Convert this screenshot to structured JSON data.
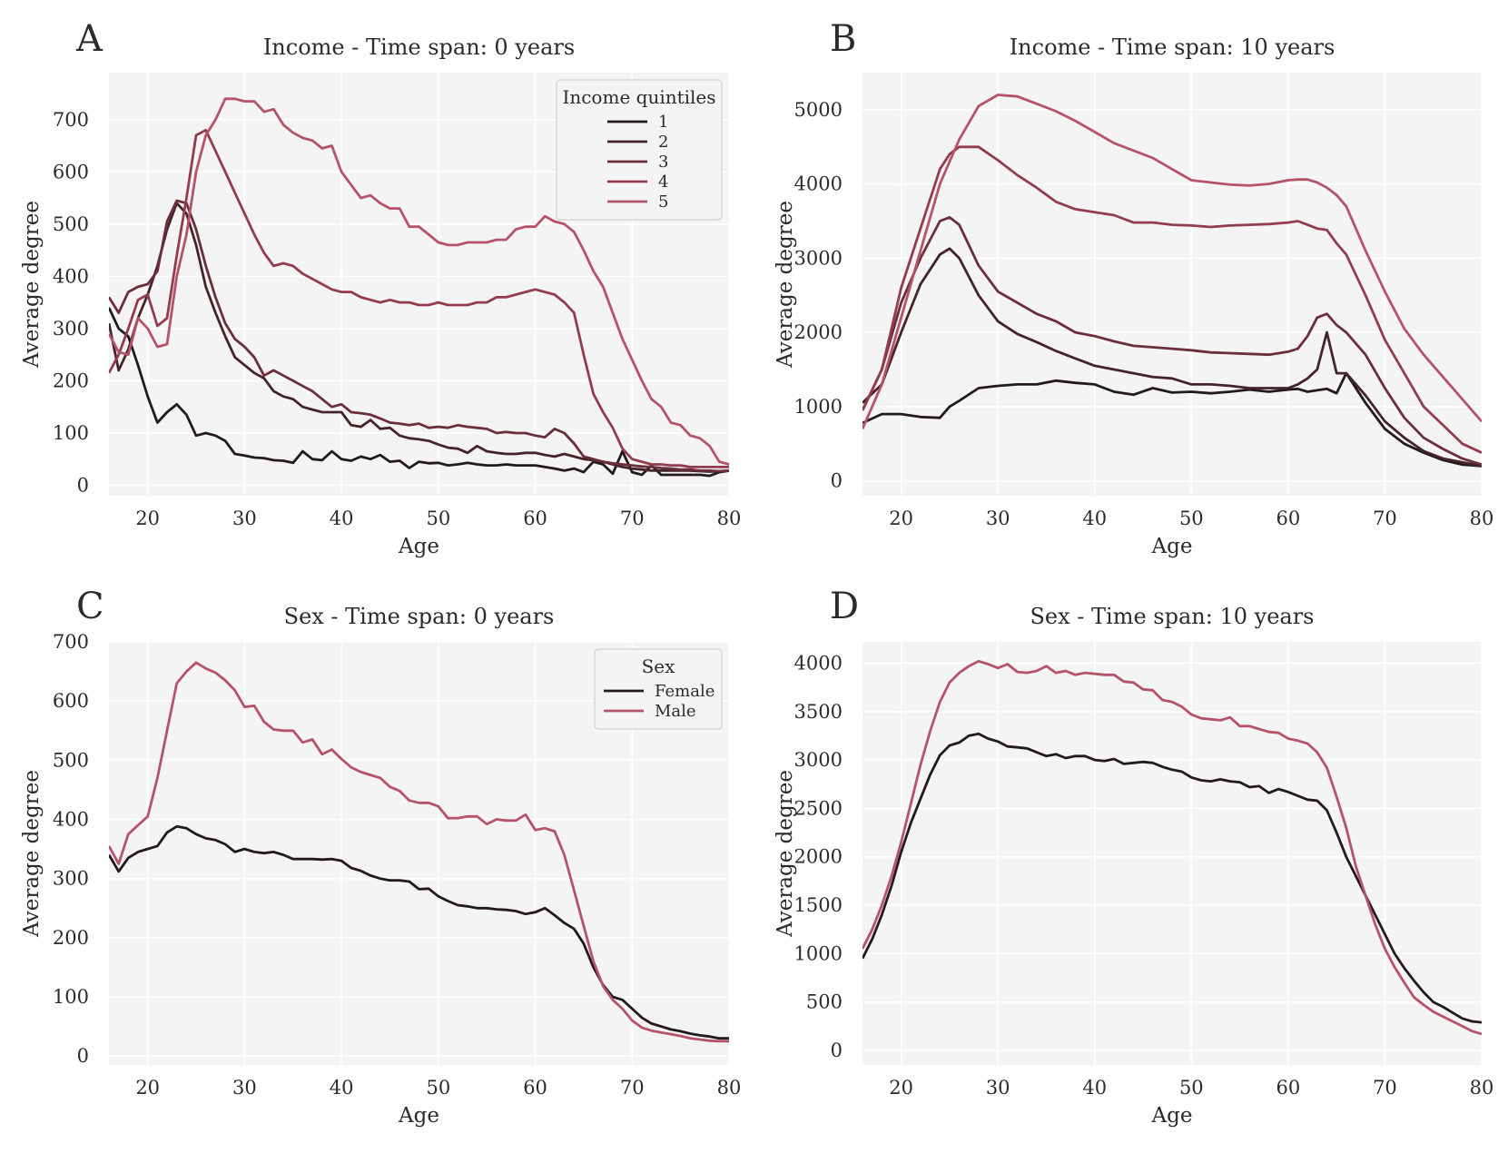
{
  "colors": {
    "plot_bg": "#f4f4f4",
    "grid": "#ffffff",
    "series": [
      "#231a1f",
      "#452429",
      "#6b2f3b",
      "#923c4e",
      "#b5536a"
    ],
    "female": "#231a1f",
    "male": "#b5536a"
  },
  "chart_data": [
    {
      "type": "line",
      "panel_label": "A",
      "title": "Income - Time span: 0 years",
      "xlabel": "Age",
      "ylabel": "Average degree",
      "xlim": [
        16,
        80
      ],
      "ylim": [
        -20,
        790
      ],
      "xticks": [
        20,
        30,
        40,
        50,
        60,
        70,
        80
      ],
      "yticks": [
        0,
        100,
        200,
        300,
        400,
        500,
        600,
        700
      ],
      "legend": {
        "title": "Income quintiles",
        "position": "top-right"
      },
      "x": [
        16,
        17,
        18,
        19,
        20,
        21,
        22,
        23,
        24,
        25,
        26,
        27,
        28,
        29,
        30,
        31,
        32,
        33,
        34,
        35,
        36,
        37,
        38,
        39,
        40,
        41,
        42,
        43,
        44,
        45,
        46,
        47,
        48,
        49,
        50,
        51,
        52,
        53,
        54,
        55,
        56,
        57,
        58,
        59,
        60,
        61,
        62,
        63,
        64,
        65,
        66,
        67,
        68,
        69,
        70,
        71,
        72,
        73,
        74,
        75,
        76,
        77,
        78,
        79,
        80
      ],
      "series": [
        {
          "name": "1",
          "values": [
            340,
            300,
            285,
            230,
            170,
            120,
            140,
            155,
            135,
            95,
            100,
            95,
            85,
            60,
            57,
            53,
            52,
            48,
            47,
            43,
            65,
            50,
            48,
            65,
            50,
            47,
            55,
            50,
            58,
            45,
            47,
            33,
            45,
            42,
            43,
            38,
            40,
            43,
            40,
            38,
            38,
            40,
            38,
            38,
            38,
            35,
            32,
            28,
            32,
            25,
            45,
            40,
            22,
            65,
            25,
            20,
            38,
            20,
            20,
            20,
            20,
            20,
            18,
            25,
            28
          ]
        },
        {
          "name": "2",
          "values": [
            310,
            220,
            260,
            320,
            365,
            420,
            490,
            540,
            520,
            460,
            380,
            330,
            285,
            245,
            230,
            215,
            205,
            180,
            170,
            165,
            150,
            145,
            140,
            140,
            140,
            115,
            112,
            125,
            108,
            110,
            95,
            90,
            88,
            85,
            78,
            72,
            70,
            62,
            75,
            65,
            62,
            60,
            60,
            62,
            62,
            58,
            55,
            60,
            55,
            50,
            48,
            45,
            40,
            35,
            32,
            30,
            28,
            28,
            28,
            28,
            28,
            27,
            26,
            27,
            28
          ]
        },
        {
          "name": "3",
          "values": [
            360,
            330,
            370,
            380,
            385,
            410,
            505,
            545,
            540,
            490,
            420,
            360,
            310,
            280,
            265,
            245,
            210,
            220,
            210,
            200,
            190,
            180,
            165,
            150,
            155,
            140,
            138,
            135,
            128,
            120,
            118,
            115,
            118,
            110,
            112,
            110,
            115,
            112,
            110,
            108,
            100,
            102,
            100,
            100,
            95,
            92,
            108,
            100,
            80,
            55,
            50,
            45,
            42,
            40,
            38,
            36,
            35,
            33,
            32,
            30,
            30,
            28,
            28,
            27,
            28
          ]
        },
        {
          "name": "4",
          "values": [
            215,
            250,
            300,
            355,
            365,
            305,
            320,
            440,
            550,
            670,
            680,
            640,
            600,
            560,
            520,
            480,
            445,
            420,
            425,
            420,
            405,
            395,
            385,
            375,
            370,
            370,
            360,
            355,
            350,
            355,
            350,
            350,
            345,
            345,
            350,
            345,
            345,
            345,
            350,
            350,
            360,
            360,
            365,
            370,
            375,
            370,
            365,
            350,
            330,
            250,
            175,
            140,
            110,
            70,
            50,
            45,
            40,
            40,
            38,
            38,
            35,
            35,
            35,
            35,
            35
          ]
        },
        {
          "name": "5",
          "values": [
            290,
            255,
            250,
            320,
            300,
            265,
            270,
            400,
            480,
            600,
            670,
            700,
            740,
            740,
            735,
            735,
            715,
            720,
            690,
            675,
            665,
            660,
            645,
            650,
            600,
            575,
            550,
            555,
            540,
            530,
            530,
            495,
            495,
            480,
            465,
            460,
            460,
            465,
            465,
            465,
            470,
            470,
            490,
            495,
            495,
            515,
            505,
            500,
            485,
            450,
            410,
            380,
            330,
            280,
            240,
            200,
            165,
            150,
            120,
            115,
            95,
            90,
            75,
            45,
            40
          ]
        }
      ]
    },
    {
      "type": "line",
      "panel_label": "B",
      "title": "Income - Time span: 10 years",
      "xlabel": "Age",
      "ylabel": "Average degree",
      "xlim": [
        16,
        80
      ],
      "ylim": [
        -200,
        5500
      ],
      "xticks": [
        20,
        30,
        40,
        50,
        60,
        70,
        80
      ],
      "yticks": [
        0,
        1000,
        2000,
        3000,
        4000,
        5000
      ],
      "x": [
        16,
        18,
        20,
        22,
        24,
        25,
        26,
        28,
        30,
        32,
        34,
        36,
        38,
        40,
        42,
        44,
        46,
        48,
        50,
        52,
        54,
        56,
        58,
        60,
        61,
        62,
        63,
        64,
        65,
        66,
        68,
        70,
        72,
        74,
        76,
        78,
        80
      ],
      "series": [
        {
          "name": "1",
          "values": [
            780,
            900,
            900,
            860,
            850,
            1000,
            1080,
            1250,
            1280,
            1300,
            1300,
            1350,
            1320,
            1300,
            1200,
            1160,
            1250,
            1190,
            1200,
            1180,
            1200,
            1230,
            1200,
            1230,
            1240,
            1200,
            1220,
            1240,
            1180,
            1450,
            1050,
            700,
            500,
            380,
            280,
            220,
            200
          ]
        },
        {
          "name": "2",
          "values": [
            1050,
            1300,
            2000,
            2650,
            3050,
            3130,
            3000,
            2500,
            2150,
            1980,
            1870,
            1750,
            1650,
            1550,
            1500,
            1450,
            1400,
            1380,
            1300,
            1300,
            1280,
            1250,
            1250,
            1250,
            1300,
            1380,
            1500,
            2000,
            1450,
            1450,
            1150,
            800,
            580,
            400,
            300,
            250,
            200
          ]
        },
        {
          "name": "3",
          "values": [
            950,
            1500,
            2400,
            3000,
            3500,
            3550,
            3450,
            2900,
            2550,
            2400,
            2250,
            2150,
            2000,
            1950,
            1880,
            1820,
            1800,
            1780,
            1760,
            1730,
            1720,
            1710,
            1700,
            1740,
            1780,
            1950,
            2200,
            2250,
            2100,
            2000,
            1700,
            1250,
            850,
            580,
            430,
            300,
            220
          ]
        },
        {
          "name": "4",
          "values": [
            950,
            1500,
            2600,
            3400,
            4200,
            4400,
            4500,
            4500,
            4320,
            4120,
            3950,
            3760,
            3660,
            3620,
            3580,
            3480,
            3480,
            3450,
            3440,
            3420,
            3440,
            3450,
            3460,
            3480,
            3500,
            3450,
            3400,
            3380,
            3200,
            3050,
            2500,
            1900,
            1450,
            1000,
            750,
            500,
            380
          ]
        },
        {
          "name": "5",
          "values": [
            700,
            1300,
            2200,
            3100,
            4000,
            4300,
            4600,
            5050,
            5200,
            5180,
            5080,
            4980,
            4850,
            4700,
            4550,
            4450,
            4350,
            4200,
            4050,
            4020,
            3990,
            3980,
            4000,
            4050,
            4060,
            4060,
            4020,
            3950,
            3850,
            3700,
            3100,
            2550,
            2050,
            1700,
            1400,
            1100,
            800
          ]
        }
      ]
    },
    {
      "type": "line",
      "panel_label": "C",
      "title": "Sex - Time span: 0 years",
      "xlabel": "Age",
      "ylabel": "Average degree",
      "xlim": [
        16,
        80
      ],
      "ylim": [
        -15,
        700
      ],
      "xticks": [
        20,
        30,
        40,
        50,
        60,
        70,
        80
      ],
      "yticks": [
        0,
        100,
        200,
        300,
        400,
        500,
        600,
        700
      ],
      "legend": {
        "title": "Sex",
        "position": "top-right"
      },
      "x": [
        16,
        17,
        18,
        19,
        20,
        21,
        22,
        23,
        24,
        25,
        26,
        27,
        28,
        29,
        30,
        31,
        32,
        33,
        34,
        35,
        36,
        37,
        38,
        39,
        40,
        41,
        42,
        43,
        44,
        45,
        46,
        47,
        48,
        49,
        50,
        51,
        52,
        53,
        54,
        55,
        56,
        57,
        58,
        59,
        60,
        61,
        62,
        63,
        64,
        65,
        66,
        67,
        68,
        69,
        70,
        71,
        72,
        73,
        74,
        75,
        76,
        77,
        78,
        79,
        80
      ],
      "series": [
        {
          "name": "Female",
          "values": [
            340,
            312,
            335,
            345,
            350,
            355,
            378,
            388,
            385,
            375,
            368,
            365,
            358,
            345,
            350,
            345,
            343,
            345,
            340,
            333,
            333,
            333,
            332,
            333,
            330,
            318,
            313,
            305,
            300,
            297,
            297,
            295,
            282,
            283,
            270,
            262,
            255,
            253,
            250,
            250,
            248,
            247,
            245,
            240,
            243,
            250,
            238,
            225,
            215,
            190,
            150,
            120,
            100,
            95,
            80,
            65,
            55,
            50,
            45,
            42,
            38,
            35,
            33,
            30,
            30
          ]
        },
        {
          "name": "Male",
          "values": [
            355,
            325,
            375,
            390,
            405,
            470,
            550,
            630,
            650,
            665,
            655,
            648,
            635,
            618,
            590,
            592,
            565,
            552,
            550,
            550,
            530,
            535,
            510,
            518,
            502,
            488,
            480,
            475,
            470,
            455,
            448,
            432,
            428,
            428,
            422,
            402,
            402,
            405,
            405,
            392,
            400,
            398,
            398,
            408,
            382,
            385,
            380,
            340,
            280,
            220,
            160,
            118,
            95,
            80,
            60,
            48,
            43,
            40,
            37,
            34,
            30,
            28,
            26,
            25,
            25
          ]
        }
      ]
    },
    {
      "type": "line",
      "panel_label": "D",
      "title": "Sex - Time span: 10 years",
      "xlabel": "Age",
      "ylabel": "Average degree",
      "xlim": [
        16,
        80
      ],
      "ylim": [
        -150,
        4220
      ],
      "xticks": [
        20,
        30,
        40,
        50,
        60,
        70,
        80
      ],
      "yticks": [
        0,
        500,
        1000,
        1500,
        2000,
        2500,
        3000,
        3500,
        4000
      ],
      "x": [
        16,
        17,
        18,
        19,
        20,
        21,
        22,
        23,
        24,
        25,
        26,
        27,
        28,
        29,
        30,
        31,
        32,
        33,
        34,
        35,
        36,
        37,
        38,
        39,
        40,
        41,
        42,
        43,
        44,
        45,
        46,
        47,
        48,
        49,
        50,
        51,
        52,
        53,
        54,
        55,
        56,
        57,
        58,
        59,
        60,
        61,
        62,
        63,
        64,
        65,
        66,
        67,
        68,
        69,
        70,
        71,
        72,
        73,
        74,
        75,
        76,
        77,
        78,
        79,
        80
      ],
      "series": [
        {
          "name": "Female",
          "values": [
            950,
            1150,
            1400,
            1700,
            2050,
            2350,
            2600,
            2850,
            3050,
            3150,
            3180,
            3250,
            3270,
            3220,
            3190,
            3140,
            3130,
            3120,
            3080,
            3040,
            3060,
            3020,
            3040,
            3040,
            3000,
            2990,
            3010,
            2960,
            2970,
            2980,
            2970,
            2930,
            2900,
            2880,
            2820,
            2790,
            2780,
            2800,
            2780,
            2770,
            2720,
            2730,
            2660,
            2700,
            2670,
            2630,
            2590,
            2580,
            2480,
            2250,
            2000,
            1800,
            1600,
            1400,
            1200,
            1000,
            850,
            720,
            600,
            500,
            450,
            390,
            330,
            300,
            290
          ]
        },
        {
          "name": "Male",
          "values": [
            1050,
            1250,
            1500,
            1800,
            2150,
            2550,
            2950,
            3300,
            3600,
            3800,
            3900,
            3970,
            4020,
            3990,
            3950,
            3990,
            3910,
            3900,
            3920,
            3970,
            3900,
            3920,
            3880,
            3900,
            3890,
            3880,
            3880,
            3810,
            3800,
            3730,
            3720,
            3620,
            3600,
            3550,
            3470,
            3430,
            3420,
            3410,
            3440,
            3350,
            3350,
            3320,
            3290,
            3280,
            3220,
            3200,
            3170,
            3080,
            2920,
            2620,
            2300,
            1900,
            1600,
            1300,
            1050,
            860,
            700,
            550,
            470,
            400,
            350,
            300,
            250,
            200,
            170
          ]
        }
      ]
    }
  ]
}
